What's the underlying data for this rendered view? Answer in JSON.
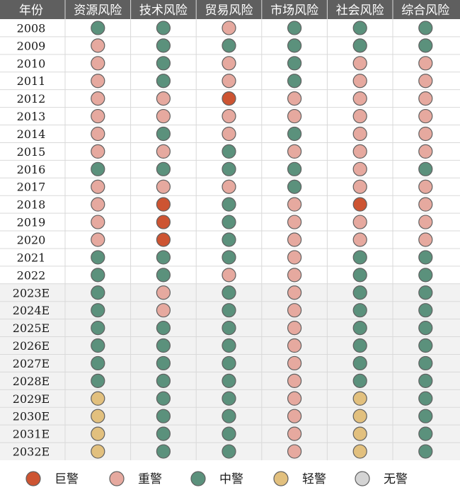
{
  "chart_data": {
    "type": "table",
    "corner_header": "年份",
    "columns": [
      "资源风险",
      "技术风险",
      "贸易风险",
      "市场风险",
      "社会风险",
      "综合风险"
    ],
    "legend": [
      {
        "key": "H",
        "label": "巨警",
        "color": "#cd5432"
      },
      {
        "key": "S",
        "label": "重警",
        "color": "#e6a99f"
      },
      {
        "key": "M",
        "label": "中警",
        "color": "#5b917c"
      },
      {
        "key": "L",
        "label": "轻警",
        "color": "#e2c07e"
      },
      {
        "key": "N",
        "label": "无警",
        "color": "#d4d4d4"
      }
    ],
    "rows": [
      {
        "year": "2008",
        "forecast": false,
        "levels": [
          "M",
          "M",
          "S",
          "M",
          "M",
          "M"
        ]
      },
      {
        "year": "2009",
        "forecast": false,
        "levels": [
          "S",
          "M",
          "M",
          "M",
          "M",
          "M"
        ]
      },
      {
        "year": "2010",
        "forecast": false,
        "levels": [
          "S",
          "M",
          "S",
          "M",
          "S",
          "S"
        ]
      },
      {
        "year": "2011",
        "forecast": false,
        "levels": [
          "S",
          "M",
          "S",
          "M",
          "S",
          "S"
        ]
      },
      {
        "year": "2012",
        "forecast": false,
        "levels": [
          "S",
          "S",
          "H",
          "S",
          "S",
          "S"
        ]
      },
      {
        "year": "2013",
        "forecast": false,
        "levels": [
          "S",
          "S",
          "S",
          "S",
          "S",
          "S"
        ]
      },
      {
        "year": "2014",
        "forecast": false,
        "levels": [
          "S",
          "M",
          "S",
          "M",
          "S",
          "S"
        ]
      },
      {
        "year": "2015",
        "forecast": false,
        "levels": [
          "S",
          "S",
          "M",
          "S",
          "S",
          "S"
        ]
      },
      {
        "year": "2016",
        "forecast": false,
        "levels": [
          "M",
          "M",
          "M",
          "M",
          "S",
          "M"
        ]
      },
      {
        "year": "2017",
        "forecast": false,
        "levels": [
          "S",
          "S",
          "S",
          "M",
          "S",
          "S"
        ]
      },
      {
        "year": "2018",
        "forecast": false,
        "levels": [
          "S",
          "H",
          "M",
          "S",
          "H",
          "S"
        ]
      },
      {
        "year": "2019",
        "forecast": false,
        "levels": [
          "S",
          "H",
          "M",
          "S",
          "S",
          "S"
        ]
      },
      {
        "year": "2020",
        "forecast": false,
        "levels": [
          "S",
          "H",
          "M",
          "S",
          "S",
          "S"
        ]
      },
      {
        "year": "2021",
        "forecast": false,
        "levels": [
          "M",
          "M",
          "M",
          "S",
          "M",
          "M"
        ]
      },
      {
        "year": "2022",
        "forecast": false,
        "levels": [
          "M",
          "M",
          "S",
          "S",
          "M",
          "M"
        ]
      },
      {
        "year": "2023E",
        "forecast": true,
        "levels": [
          "M",
          "S",
          "M",
          "S",
          "M",
          "M"
        ]
      },
      {
        "year": "2024E",
        "forecast": true,
        "levels": [
          "M",
          "S",
          "M",
          "S",
          "M",
          "M"
        ]
      },
      {
        "year": "2025E",
        "forecast": true,
        "levels": [
          "M",
          "M",
          "M",
          "S",
          "M",
          "M"
        ]
      },
      {
        "year": "2026E",
        "forecast": true,
        "levels": [
          "M",
          "M",
          "M",
          "S",
          "M",
          "M"
        ]
      },
      {
        "year": "2027E",
        "forecast": true,
        "levels": [
          "M",
          "M",
          "M",
          "S",
          "M",
          "M"
        ]
      },
      {
        "year": "2028E",
        "forecast": true,
        "levels": [
          "M",
          "M",
          "M",
          "S",
          "M",
          "M"
        ]
      },
      {
        "year": "2029E",
        "forecast": true,
        "levels": [
          "L",
          "M",
          "M",
          "S",
          "L",
          "M"
        ]
      },
      {
        "year": "2030E",
        "forecast": true,
        "levels": [
          "L",
          "M",
          "M",
          "S",
          "L",
          "M"
        ]
      },
      {
        "year": "2031E",
        "forecast": true,
        "levels": [
          "L",
          "M",
          "M",
          "S",
          "L",
          "M"
        ]
      },
      {
        "year": "2032E",
        "forecast": true,
        "levels": [
          "L",
          "M",
          "M",
          "S",
          "L",
          "M"
        ]
      }
    ],
    "colors": {
      "header_bg": "#5f5f5f",
      "header_text": "#ffffff",
      "forecast_row_bg": "#f2f2f2",
      "grid_line": "#d9d9d9",
      "circle_stroke": "#606060"
    }
  }
}
